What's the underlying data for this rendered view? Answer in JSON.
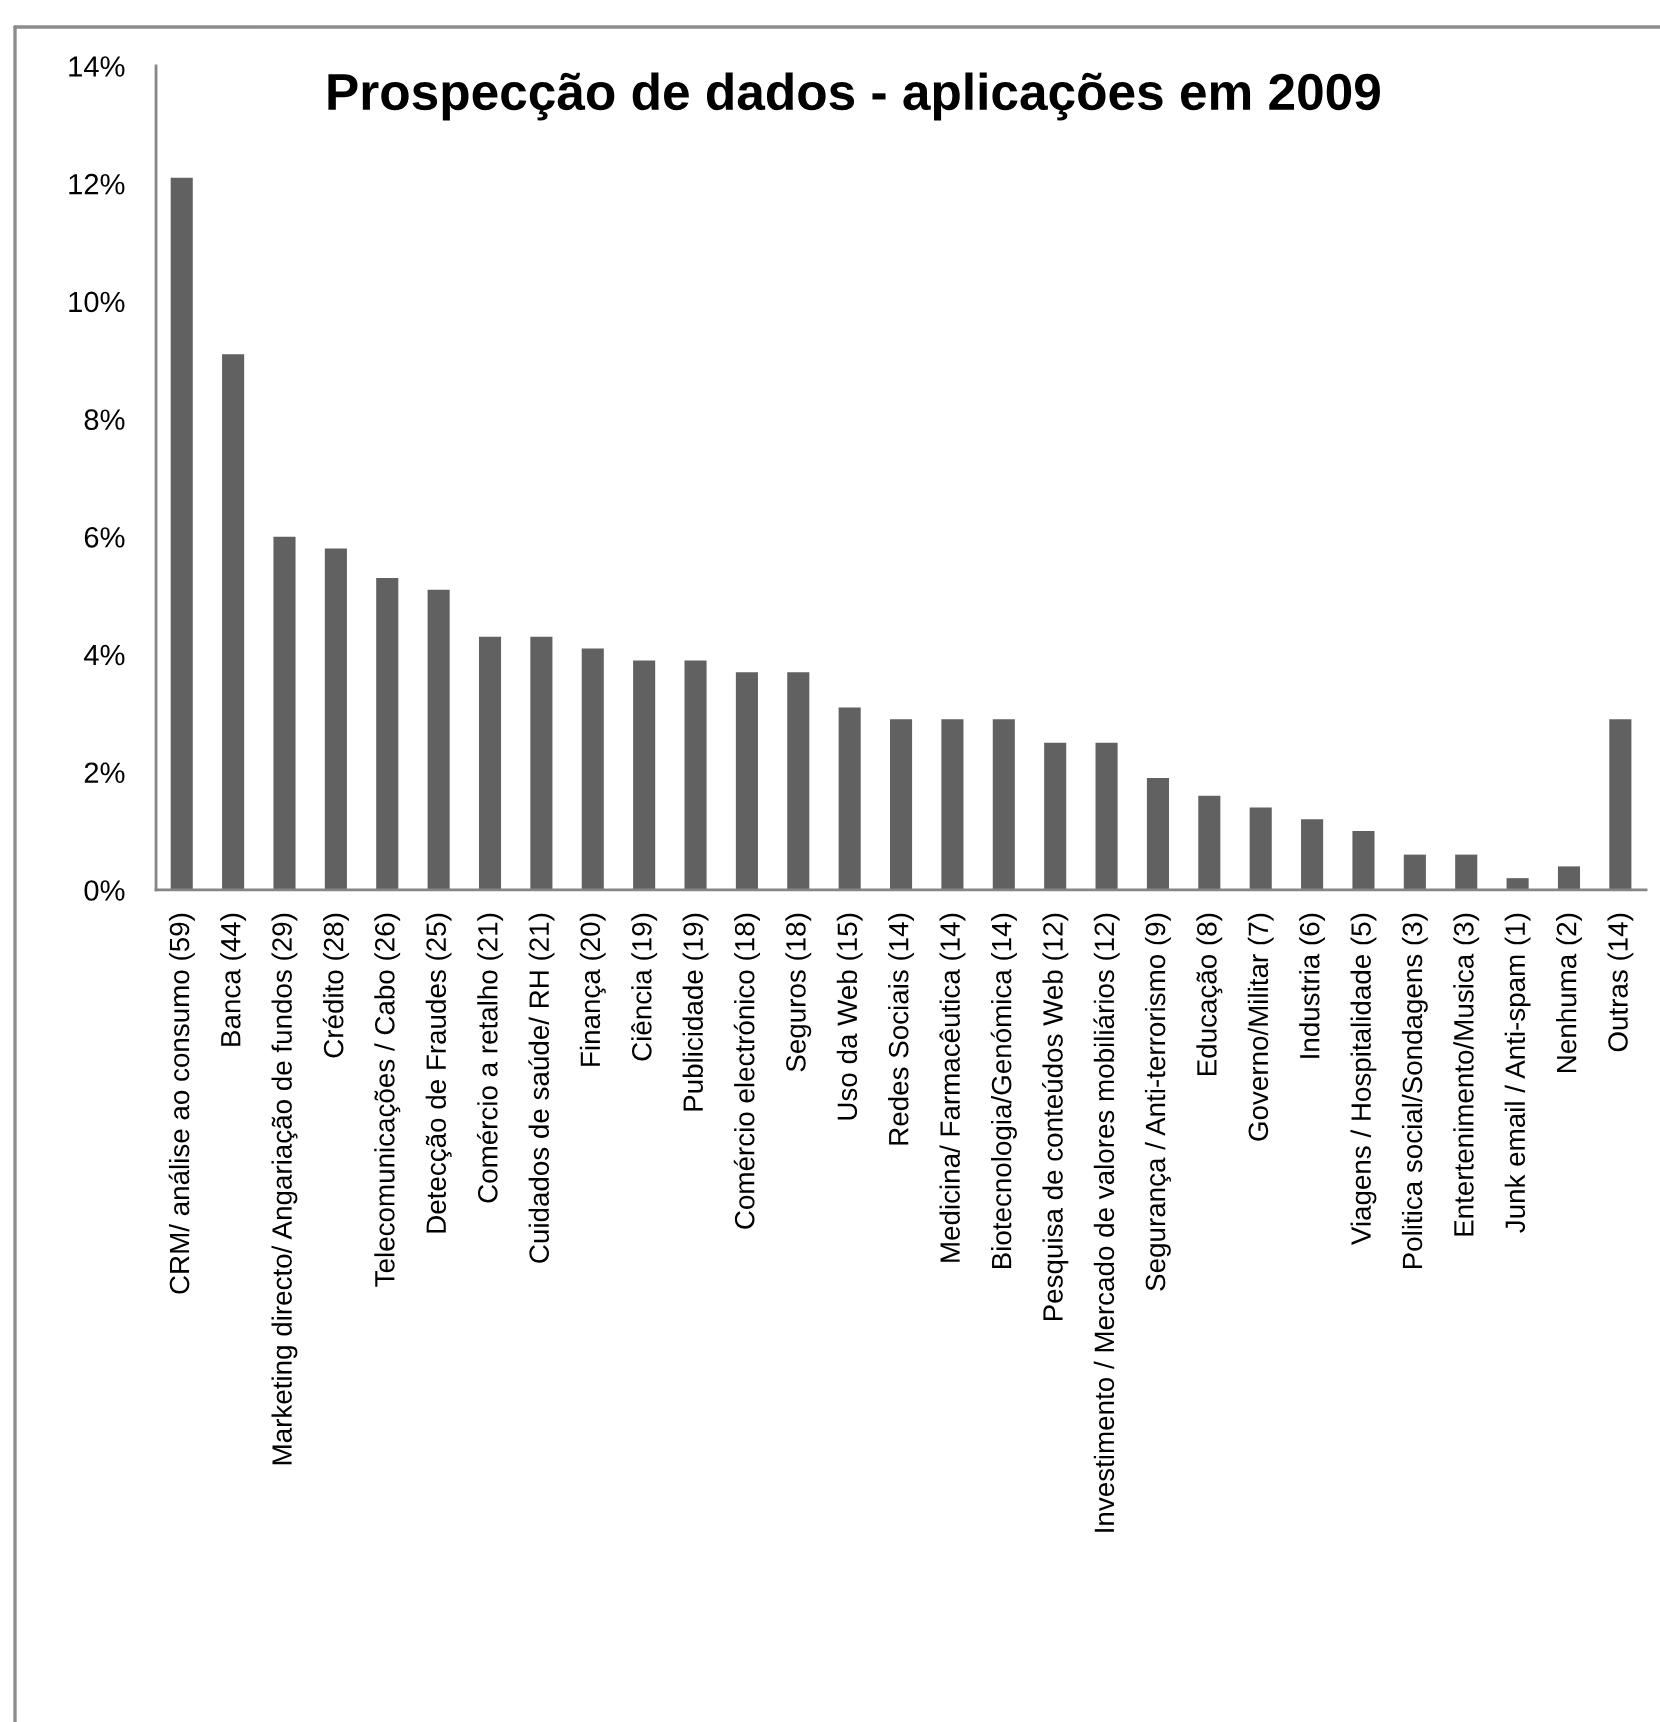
{
  "chart_data": {
    "type": "bar",
    "title": "Prospecção de dados - aplicações em 2009",
    "categories": [
      "CRM/ análise ao consumo (59)",
      "Banca (44)",
      "Marketing directo/ Angariação de fundos (29)",
      "Crédito (28)",
      "Telecomunicações / Cabo (26)",
      "Detecção de Fraudes (25)",
      "Comércio a retalho (21)",
      "Cuidados de saúde/ RH (21)",
      "Finança (20)",
      "Ciência (19)",
      "Publicidade (19)",
      "Comércio electrónico (18)",
      "Seguros (18)",
      "Uso da Web (15)",
      "Redes Sociais (14)",
      "Medicina/ Farmacêutica (14)",
      "Biotecnologia/Genómica (14)",
      "Pesquisa de conteúdos Web (12)",
      "Investimento / Mercado de valores mobiliários (12)",
      "Segurança / Anti-terrorismo (9)",
      "Educação (8)",
      "Governo/Militar (7)",
      "Industria (6)",
      "Viagens / Hospitalidade (5)",
      "Politica social/Sondagens (3)",
      "Entertenimento/Musica (3)",
      "Junk email / Anti-spam (1)",
      "Nenhuma (2)",
      "Outras (14)"
    ],
    "values": [
      12.1,
      9.1,
      6.0,
      5.8,
      5.3,
      5.1,
      4.3,
      4.3,
      4.1,
      3.9,
      3.9,
      3.7,
      3.7,
      3.1,
      2.9,
      2.9,
      2.9,
      2.5,
      2.5,
      1.9,
      1.6,
      1.4,
      1.2,
      1.0,
      0.6,
      0.6,
      0.2,
      0.4,
      2.9
    ],
    "color": "#616161",
    "ylim": [
      0,
      14
    ],
    "yticks": [
      {
        "value": 0,
        "label": "0%"
      },
      {
        "value": 2,
        "label": "2%"
      },
      {
        "value": 4,
        "label": "4%"
      },
      {
        "value": 6,
        "label": "6%"
      },
      {
        "value": 8,
        "label": "8%"
      },
      {
        "value": 10,
        "label": "10%"
      },
      {
        "value": 12,
        "label": "12%"
      },
      {
        "value": 14,
        "label": "14%"
      }
    ]
  }
}
